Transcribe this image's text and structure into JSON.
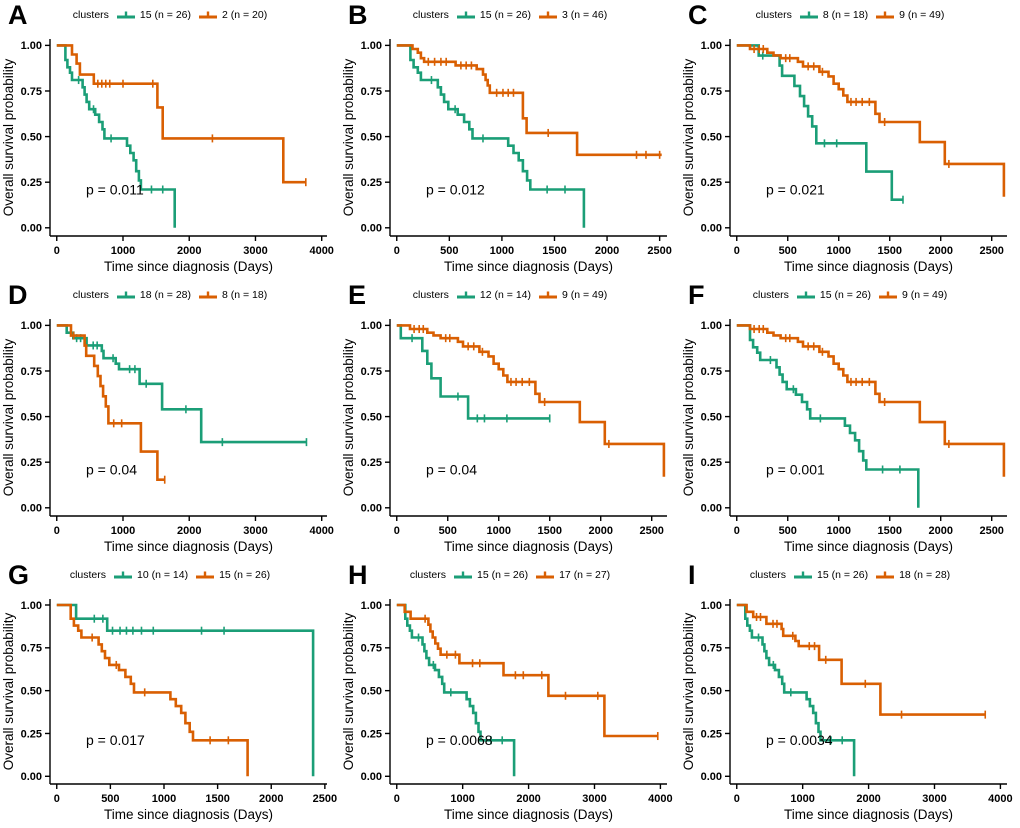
{
  "figure": {
    "background": "#ffffff",
    "axis_color": "#000000",
    "group_colors": {
      "teal": "#1B9E77",
      "orange": "#D95F02"
    },
    "shared": {
      "legend_title": "clusters",
      "xlabel": "Time since diagnosis (Days)",
      "ylabel": "Overall survival probability",
      "yticks": [
        0,
        0.25,
        0.5,
        0.75,
        1
      ],
      "ytick_labels": [
        "0.00",
        "0.25",
        "0.50",
        "0.75",
        "1.00"
      ],
      "grid": false,
      "legend_position": "top"
    },
    "curves": {
      "c15": {
        "steps": [
          [
            0,
            1
          ],
          [
            130,
            0.92
          ],
          [
            160,
            0.88
          ],
          [
            200,
            0.85
          ],
          [
            230,
            0.81
          ],
          [
            390,
            0.77
          ],
          [
            420,
            0.73
          ],
          [
            450,
            0.69
          ],
          [
            490,
            0.65
          ],
          [
            580,
            0.62
          ],
          [
            640,
            0.58
          ],
          [
            690,
            0.54
          ],
          [
            720,
            0.49
          ],
          [
            1060,
            0.45
          ],
          [
            1110,
            0.41
          ],
          [
            1160,
            0.37
          ],
          [
            1200,
            0.31
          ],
          [
            1240,
            0.26
          ],
          [
            1270,
            0.21
          ],
          [
            1780,
            0
          ]
        ],
        "censors": [
          [
            330,
            0.81
          ],
          [
            555,
            0.65
          ],
          [
            820,
            0.49
          ],
          [
            1430,
            0.21
          ],
          [
            1600,
            0.21
          ]
        ]
      },
      "c2": {
        "steps": [
          [
            0,
            1
          ],
          [
            230,
            0.95
          ],
          [
            300,
            0.9
          ],
          [
            350,
            0.84
          ],
          [
            560,
            0.79
          ],
          [
            1520,
            0.66
          ],
          [
            1600,
            0.49
          ],
          [
            3420,
            0.25
          ],
          [
            3760,
            0.25
          ]
        ],
        "censors": [
          [
            620,
            0.79
          ],
          [
            680,
            0.79
          ],
          [
            740,
            0.79
          ],
          [
            800,
            0.79
          ],
          [
            1000,
            0.79
          ],
          [
            1450,
            0.79
          ],
          [
            2350,
            0.49
          ],
          [
            3760,
            0.25
          ]
        ]
      },
      "c3": {
        "steps": [
          [
            0,
            1
          ],
          [
            150,
            0.98
          ],
          [
            200,
            0.96
          ],
          [
            230,
            0.93
          ],
          [
            260,
            0.91
          ],
          [
            560,
            0.89
          ],
          [
            760,
            0.87
          ],
          [
            820,
            0.84
          ],
          [
            845,
            0.81
          ],
          [
            865,
            0.78
          ],
          [
            885,
            0.74
          ],
          [
            1200,
            0.6
          ],
          [
            1235,
            0.52
          ],
          [
            1715,
            0.4
          ],
          [
            2520,
            0.4
          ]
        ],
        "censors": [
          [
            300,
            0.91
          ],
          [
            360,
            0.91
          ],
          [
            420,
            0.91
          ],
          [
            470,
            0.91
          ],
          [
            610,
            0.89
          ],
          [
            660,
            0.89
          ],
          [
            710,
            0.89
          ],
          [
            950,
            0.74
          ],
          [
            1010,
            0.74
          ],
          [
            1060,
            0.74
          ],
          [
            1110,
            0.74
          ],
          [
            1440,
            0.52
          ],
          [
            2280,
            0.4
          ],
          [
            2370,
            0.4
          ],
          [
            2500,
            0.4
          ]
        ]
      },
      "c8": {
        "steps": [
          [
            0,
            1
          ],
          [
            215,
            0.944
          ],
          [
            420,
            0.889
          ],
          [
            445,
            0.833
          ],
          [
            565,
            0.778
          ],
          [
            620,
            0.722
          ],
          [
            660,
            0.667
          ],
          [
            700,
            0.611
          ],
          [
            740,
            0.556
          ],
          [
            780,
            0.463
          ],
          [
            1270,
            0.308
          ],
          [
            1520,
            0.154
          ],
          [
            1630,
            0.154
          ]
        ],
        "censors": [
          [
            255,
            0.944
          ],
          [
            860,
            0.463
          ],
          [
            980,
            0.463
          ],
          [
            1630,
            0.154
          ]
        ]
      },
      "c9": {
        "steps": [
          [
            0,
            1
          ],
          [
            130,
            0.98
          ],
          [
            300,
            0.96
          ],
          [
            360,
            0.945
          ],
          [
            430,
            0.93
          ],
          [
            600,
            0.91
          ],
          [
            650,
            0.885
          ],
          [
            810,
            0.855
          ],
          [
            900,
            0.83
          ],
          [
            950,
            0.79
          ],
          [
            1000,
            0.76
          ],
          [
            1045,
            0.725
          ],
          [
            1085,
            0.69
          ],
          [
            1360,
            0.625
          ],
          [
            1400,
            0.58
          ],
          [
            1795,
            0.47
          ],
          [
            2040,
            0.35
          ],
          [
            2620,
            0.17
          ]
        ],
        "censors": [
          [
            170,
            0.98
          ],
          [
            220,
            0.98
          ],
          [
            260,
            0.98
          ],
          [
            480,
            0.93
          ],
          [
            520,
            0.93
          ],
          [
            700,
            0.885
          ],
          [
            755,
            0.885
          ],
          [
            840,
            0.855
          ],
          [
            1120,
            0.69
          ],
          [
            1170,
            0.69
          ],
          [
            1230,
            0.69
          ],
          [
            1300,
            0.69
          ],
          [
            1450,
            0.58
          ],
          [
            2080,
            0.35
          ]
        ]
      },
      "c18": {
        "steps": [
          [
            0,
            1
          ],
          [
            150,
            0.96
          ],
          [
            250,
            0.93
          ],
          [
            450,
            0.89
          ],
          [
            680,
            0.86
          ],
          [
            705,
            0.82
          ],
          [
            890,
            0.79
          ],
          [
            940,
            0.76
          ],
          [
            1250,
            0.68
          ],
          [
            1590,
            0.54
          ],
          [
            2180,
            0.36
          ],
          [
            3770,
            0.36
          ]
        ],
        "censors": [
          [
            300,
            0.93
          ],
          [
            360,
            0.93
          ],
          [
            550,
            0.89
          ],
          [
            610,
            0.89
          ],
          [
            850,
            0.82
          ],
          [
            1100,
            0.76
          ],
          [
            1180,
            0.76
          ],
          [
            1350,
            0.68
          ],
          [
            1950,
            0.54
          ],
          [
            2500,
            0.36
          ],
          [
            3770,
            0.36
          ]
        ]
      },
      "c12": {
        "steps": [
          [
            0,
            1
          ],
          [
            40,
            0.93
          ],
          [
            250,
            0.86
          ],
          [
            300,
            0.79
          ],
          [
            340,
            0.71
          ],
          [
            430,
            0.61
          ],
          [
            700,
            0.49
          ],
          [
            1500,
            0.49
          ]
        ],
        "censors": [
          [
            150,
            0.93
          ],
          [
            600,
            0.61
          ],
          [
            790,
            0.49
          ],
          [
            860,
            0.49
          ],
          [
            1080,
            0.49
          ],
          [
            1500,
            0.49
          ]
        ]
      },
      "c10": {
        "steps": [
          [
            0,
            1
          ],
          [
            180,
            0.92
          ],
          [
            470,
            0.85
          ],
          [
            2390,
            0
          ]
        ],
        "censors": [
          [
            350,
            0.92
          ],
          [
            430,
            0.92
          ],
          [
            520,
            0.85
          ],
          [
            590,
            0.85
          ],
          [
            650,
            0.85
          ],
          [
            710,
            0.85
          ],
          [
            790,
            0.85
          ],
          [
            900,
            0.85
          ],
          [
            1350,
            0.85
          ],
          [
            1560,
            0.85
          ]
        ]
      },
      "c17": {
        "steps": [
          [
            0,
            1
          ],
          [
            120,
            0.96
          ],
          [
            210,
            0.92
          ],
          [
            480,
            0.885
          ],
          [
            510,
            0.845
          ],
          [
            545,
            0.81
          ],
          [
            585,
            0.775
          ],
          [
            625,
            0.745
          ],
          [
            665,
            0.71
          ],
          [
            950,
            0.66
          ],
          [
            1620,
            0.59
          ],
          [
            2300,
            0.47
          ],
          [
            3150,
            0.235
          ],
          [
            3960,
            0.235
          ]
        ],
        "censors": [
          [
            430,
            0.92
          ],
          [
            760,
            0.71
          ],
          [
            890,
            0.71
          ],
          [
            1150,
            0.66
          ],
          [
            1260,
            0.66
          ],
          [
            1800,
            0.59
          ],
          [
            1920,
            0.59
          ],
          [
            2200,
            0.59
          ],
          [
            2560,
            0.47
          ],
          [
            3050,
            0.47
          ],
          [
            3960,
            0.235
          ]
        ]
      }
    }
  },
  "chart_data": [
    {
      "type": "line",
      "subtype": "km_step",
      "panel": "A",
      "p_label": "p = 0.011",
      "xlim": [
        0,
        4080
      ],
      "xticks": [
        0,
        1000,
        2000,
        3000,
        4000
      ],
      "series": [
        {
          "name": "15 (n = 26)",
          "color": "#1B9E77",
          "curve": "c15"
        },
        {
          "name": "2 (n = 20)",
          "color": "#D95F02",
          "curve": "c2"
        }
      ]
    },
    {
      "type": "line",
      "subtype": "km_step",
      "panel": "B",
      "p_label": "p = 0.012",
      "xlim": [
        0,
        2570
      ],
      "xticks": [
        0,
        500,
        1000,
        1500,
        2000,
        2500
      ],
      "series": [
        {
          "name": "15 (n = 26)",
          "color": "#1B9E77",
          "curve": "c15"
        },
        {
          "name": "3 (n = 46)",
          "color": "#D95F02",
          "curve": "c3"
        }
      ]
    },
    {
      "type": "line",
      "subtype": "km_step",
      "panel": "C",
      "p_label": "p = 0.021",
      "xlim": [
        0,
        2650
      ],
      "xticks": [
        0,
        500,
        1000,
        1500,
        2000,
        2500
      ],
      "series": [
        {
          "name": "8 (n = 18)",
          "color": "#1B9E77",
          "curve": "c8"
        },
        {
          "name": "9 (n = 49)",
          "color": "#D95F02",
          "curve": "c9"
        }
      ]
    },
    {
      "type": "line",
      "subtype": "km_step",
      "panel": "D",
      "p_label": "p = 0.04",
      "xlim": [
        0,
        4080
      ],
      "xticks": [
        0,
        1000,
        2000,
        3000,
        4000
      ],
      "series": [
        {
          "name": "18 (n = 28)",
          "color": "#1B9E77",
          "curve": "c18"
        },
        {
          "name": "8 (n = 18)",
          "color": "#D95F02",
          "curve": "c8"
        }
      ]
    },
    {
      "type": "line",
      "subtype": "km_step",
      "panel": "E",
      "p_label": "p = 0.04",
      "xlim": [
        0,
        2650
      ],
      "xticks": [
        0,
        500,
        1000,
        1500,
        2000,
        2500
      ],
      "series": [
        {
          "name": "12 (n = 14)",
          "color": "#1B9E77",
          "curve": "c12"
        },
        {
          "name": "9 (n = 49)",
          "color": "#D95F02",
          "curve": "c9"
        }
      ]
    },
    {
      "type": "line",
      "subtype": "km_step",
      "panel": "F",
      "p_label": "p = 0.001",
      "xlim": [
        0,
        2650
      ],
      "xticks": [
        0,
        500,
        1000,
        1500,
        2000,
        2500
      ],
      "series": [
        {
          "name": "15 (n = 26)",
          "color": "#1B9E77",
          "curve": "c15"
        },
        {
          "name": "9 (n = 49)",
          "color": "#D95F02",
          "curve": "c9"
        }
      ]
    },
    {
      "type": "line",
      "subtype": "km_step",
      "panel": "G",
      "p_label": "p = 0.017",
      "xlim": [
        0,
        2520
      ],
      "xticks": [
        0,
        500,
        1000,
        1500,
        2000,
        2500
      ],
      "series": [
        {
          "name": "10 (n = 14)",
          "color": "#1B9E77",
          "curve": "c10"
        },
        {
          "name": "15 (n = 26)",
          "color": "#D95F02",
          "curve": "c15"
        }
      ]
    },
    {
      "type": "line",
      "subtype": "km_step",
      "panel": "H",
      "p_label": "p = 0.0068",
      "xlim": [
        0,
        4100
      ],
      "xticks": [
        0,
        1000,
        2000,
        3000,
        4000
      ],
      "series": [
        {
          "name": "15 (n = 26)",
          "color": "#1B9E77",
          "curve": "c15"
        },
        {
          "name": "17 (n = 27)",
          "color": "#D95F02",
          "curve": "c17"
        }
      ]
    },
    {
      "type": "line",
      "subtype": "km_step",
      "panel": "I",
      "p_label": "p = 0.0034",
      "xlim": [
        0,
        4100
      ],
      "xticks": [
        0,
        1000,
        2000,
        3000,
        4000
      ],
      "series": [
        {
          "name": "15 (n = 26)",
          "color": "#1B9E77",
          "curve": "c15"
        },
        {
          "name": "18 (n = 28)",
          "color": "#D95F02",
          "curve": "c18"
        }
      ]
    }
  ]
}
